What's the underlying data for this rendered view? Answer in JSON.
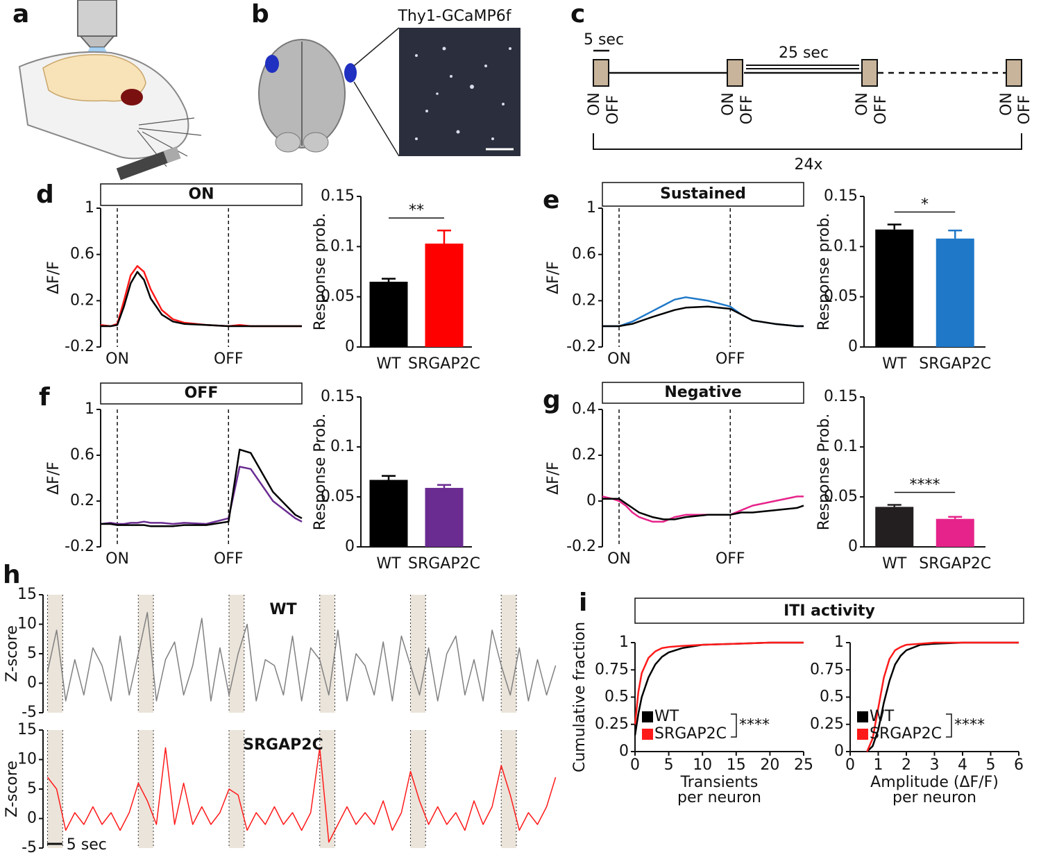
{
  "panel_labels": [
    "a",
    "b",
    "c",
    "d",
    "e",
    "f",
    "g",
    "h",
    "i"
  ],
  "illustration_b": {
    "label": "Thy1-GCaMP6f"
  },
  "protocol": {
    "stim_label": "5 sec",
    "iti_label": "25 sec",
    "on_label": "ON",
    "off_label": "OFF",
    "repeat_label": "24x"
  },
  "chart_data": [
    {
      "type": "line",
      "title": "ON",
      "ylabel": "ΔF/F",
      "frame": "left",
      "xtick_lines": "dashed",
      "x": [
        -0.75,
        -0.3,
        0,
        0.3,
        0.6,
        0.9,
        1.2,
        1.5,
        2,
        2.5,
        3,
        4,
        5,
        5.5,
        6,
        7,
        8,
        8.3
      ],
      "xlim": [
        -0.75,
        8.3
      ],
      "xticks": [
        {
          "value": 0,
          "label": "ON"
        },
        {
          "value": 5,
          "label": "OFF"
        }
      ],
      "ylim": [
        -0.2,
        1
      ],
      "yticks": [
        -0.2,
        0.2,
        0.6,
        1
      ],
      "series": [
        {
          "name": "SRGAP2C",
          "color": "#ff1a1a",
          "values": [
            -0.01,
            -0.02,
            0,
            0.2,
            0.42,
            0.5,
            0.45,
            0.3,
            0.12,
            0.04,
            0.01,
            -0.01,
            -0.02,
            -0.01,
            -0.02,
            -0.02,
            -0.02,
            -0.02
          ]
        },
        {
          "name": "WT",
          "color": "#000000",
          "values": [
            -0.02,
            -0.02,
            -0.01,
            0.15,
            0.35,
            0.45,
            0.38,
            0.22,
            0.08,
            0.02,
            0,
            -0.01,
            -0.02,
            -0.02,
            -0.02,
            -0.02,
            -0.02,
            -0.02
          ]
        }
      ]
    },
    {
      "type": "bar",
      "ylabel": "Response prob.",
      "frame": "left-bottom",
      "categories": [
        "WT",
        "SRGAP2C"
      ],
      "values": [
        0.065,
        0.103
      ],
      "errors": [
        0.003,
        0.013
      ],
      "colors": [
        "#000000",
        "#ff0000"
      ],
      "ylim": [
        0,
        0.15
      ],
      "yticks": [
        0,
        0.05,
        0.1,
        0.15
      ],
      "significance": "**"
    },
    {
      "type": "line",
      "title": "Sustained",
      "ylabel": "ΔF/F",
      "frame": "left",
      "xtick_lines": "dashed",
      "x": [
        -0.75,
        -0.3,
        0,
        0.3,
        0.6,
        0.9,
        1.2,
        1.5,
        2,
        2.5,
        3,
        4,
        5,
        5.5,
        6,
        7,
        8,
        8.3
      ],
      "xlim": [
        -0.75,
        8.3
      ],
      "xticks": [
        {
          "value": 0,
          "label": "ON"
        },
        {
          "value": 5,
          "label": "OFF"
        }
      ],
      "ylim": [
        -0.2,
        1
      ],
      "yticks": [
        -0.2,
        0.2,
        0.6,
        1
      ],
      "series": [
        {
          "name": "SRGAP2C",
          "color": "#1f78c8",
          "values": [
            -0.02,
            -0.02,
            -0.02,
            0,
            0.02,
            0.05,
            0.08,
            0.11,
            0.16,
            0.21,
            0.23,
            0.2,
            0.15,
            0.08,
            0.03,
            0,
            -0.02,
            -0.02
          ]
        },
        {
          "name": "WT",
          "color": "#000000",
          "values": [
            -0.02,
            -0.02,
            -0.02,
            -0.01,
            0,
            0.02,
            0.04,
            0.06,
            0.09,
            0.12,
            0.14,
            0.15,
            0.13,
            0.08,
            0.03,
            0,
            -0.02,
            -0.02
          ]
        }
      ]
    },
    {
      "type": "bar",
      "ylabel": "Response prob.",
      "frame": "left-bottom",
      "categories": [
        "WT",
        "SRGAP2C"
      ],
      "values": [
        0.117,
        0.108
      ],
      "errors": [
        0.005,
        0.008
      ],
      "colors": [
        "#000000",
        "#1f78c8"
      ],
      "ylim": [
        0,
        0.15
      ],
      "yticks": [
        0,
        0.05,
        0.1,
        0.15
      ],
      "significance": "*"
    },
    {
      "type": "line",
      "title": "OFF",
      "ylabel": "ΔF/F",
      "frame": "left",
      "xtick_lines": "dashed",
      "x": [
        -0.75,
        -0.3,
        0,
        0.3,
        0.6,
        0.9,
        1.2,
        1.5,
        2,
        2.5,
        3,
        4,
        5,
        5.5,
        6,
        7,
        8,
        8.3
      ],
      "xlim": [
        -0.75,
        8.3
      ],
      "xticks": [
        {
          "value": 0,
          "label": "ON"
        },
        {
          "value": 5,
          "label": "OFF"
        }
      ],
      "ylim": [
        -0.2,
        1
      ],
      "yticks": [
        -0.2,
        0.2,
        0.6,
        1
      ],
      "series": [
        {
          "name": "SRGAP2C",
          "color": "#6a2c91",
          "values": [
            0,
            0.01,
            0,
            0,
            0.01,
            0.01,
            0.02,
            0.01,
            0.01,
            0,
            0.01,
            0,
            0.05,
            0.5,
            0.48,
            0.2,
            0.05,
            0.02
          ]
        },
        {
          "name": "WT",
          "color": "#000000",
          "values": [
            0,
            0,
            -0.01,
            -0.01,
            -0.01,
            -0.01,
            -0.01,
            -0.02,
            -0.02,
            -0.02,
            -0.01,
            -0.01,
            0.02,
            0.65,
            0.62,
            0.28,
            0.08,
            0.05
          ]
        }
      ]
    },
    {
      "type": "bar",
      "ylabel": "Response Prob.",
      "frame": "left-bottom",
      "categories": [
        "WT",
        "SRGAP2C"
      ],
      "values": [
        0.067,
        0.059
      ],
      "errors": [
        0.004,
        0.003
      ],
      "colors": [
        "#000000",
        "#6a2c91"
      ],
      "ylim": [
        0,
        0.15
      ],
      "yticks": [
        0,
        0.05,
        0.1,
        0.15
      ]
    },
    {
      "type": "line",
      "title": "Negative",
      "ylabel": "ΔF/F",
      "frame": "left",
      "xtick_lines": "dashed",
      "x": [
        -0.75,
        -0.3,
        0,
        0.3,
        0.6,
        0.9,
        1.2,
        1.5,
        2,
        2.5,
        3,
        4,
        5,
        5.5,
        6,
        7,
        8,
        8.3
      ],
      "xlim": [
        -0.75,
        8.3
      ],
      "xticks": [
        {
          "value": 0,
          "label": "ON"
        },
        {
          "value": 5,
          "label": "OFF"
        }
      ],
      "ylim": [
        -0.2,
        0.4
      ],
      "yticks": [
        -0.2,
        0,
        0.2,
        0.4
      ],
      "series": [
        {
          "name": "SRGAP2C",
          "color": "#e6238a",
          "values": [
            0.02,
            0.01,
            0,
            -0.02,
            -0.05,
            -0.07,
            -0.08,
            -0.09,
            -0.09,
            -0.07,
            -0.06,
            -0.06,
            -0.06,
            -0.04,
            -0.02,
            0,
            0.02,
            0.02
          ]
        },
        {
          "name": "WT",
          "color": "#000000",
          "values": [
            0.01,
            0.01,
            0.01,
            -0.01,
            -0.03,
            -0.05,
            -0.06,
            -0.07,
            -0.08,
            -0.08,
            -0.07,
            -0.06,
            -0.06,
            -0.05,
            -0.05,
            -0.04,
            -0.03,
            -0.02
          ]
        }
      ]
    },
    {
      "type": "bar",
      "ylabel": "Response Prob.",
      "frame": "left-bottom",
      "categories": [
        "WT",
        "SRGAP2C"
      ],
      "values": [
        0.04,
        0.028
      ],
      "errors": [
        0.002,
        0.002
      ],
      "colors": [
        "#231f20",
        "#e6238a"
      ],
      "ylim": [
        0,
        0.15
      ],
      "yticks": [
        0,
        0.05,
        0.1,
        0.15
      ],
      "significance": "****"
    },
    {
      "type": "line",
      "annotation": "WT",
      "ylabel": "Z-score",
      "frame": "left",
      "x": [
        0,
        3,
        6,
        9,
        12,
        15,
        18,
        21,
        24,
        27,
        30,
        33,
        36,
        39,
        42,
        45,
        48,
        51,
        54,
        57,
        60,
        63,
        66,
        69,
        72,
        75,
        78,
        81,
        84,
        87,
        90,
        93,
        96,
        99,
        102,
        105,
        108,
        111,
        114,
        117,
        120,
        123,
        126,
        129,
        132,
        135,
        138,
        141,
        144,
        147,
        150,
        153,
        156,
        159,
        162,
        165,
        168
      ],
      "xlim": [
        -1.5,
        169
      ],
      "ylim": [
        -5,
        15
      ],
      "yticks": [
        -5,
        0,
        5,
        10,
        15
      ],
      "stimulus_starts": [
        0,
        30,
        60,
        90,
        120,
        150
      ],
      "stimulus_duration": 5,
      "series": [
        {
          "name": "WT",
          "color": "#808080",
          "values": [
            2,
            9,
            -3,
            4,
            -2,
            6,
            3,
            -3,
            8,
            -2,
            5,
            12,
            -3,
            4,
            7,
            -2,
            3,
            11,
            -3,
            6,
            -2,
            5,
            10,
            -3,
            4,
            3,
            -2,
            8,
            -3,
            6,
            4,
            -2,
            9,
            -3,
            5,
            3,
            -2,
            7,
            -3,
            8,
            3,
            -2,
            6,
            -3,
            5,
            8,
            -2,
            4,
            -3,
            9,
            3,
            -2,
            6,
            -3,
            4,
            -2,
            3
          ]
        }
      ]
    },
    {
      "type": "line",
      "annotation": "SRGAP2C",
      "ylabel": "Z-score",
      "frame": "left",
      "scale_bar": "5 sec",
      "x": [
        0,
        3,
        6,
        9,
        12,
        15,
        18,
        21,
        24,
        27,
        30,
        33,
        36,
        39,
        42,
        45,
        48,
        51,
        54,
        57,
        60,
        63,
        66,
        69,
        72,
        75,
        78,
        81,
        84,
        87,
        90,
        93,
        96,
        99,
        102,
        105,
        108,
        111,
        114,
        117,
        120,
        123,
        126,
        129,
        132,
        135,
        138,
        141,
        144,
        147,
        150,
        153,
        156,
        159,
        162,
        165,
        168
      ],
      "xlim": [
        -1.5,
        169
      ],
      "ylim": [
        -5,
        15
      ],
      "yticks": [
        -5,
        0,
        5,
        10,
        15
      ],
      "stimulus_starts": [
        0,
        30,
        60,
        90,
        120,
        150
      ],
      "stimulus_duration": 5,
      "series": [
        {
          "name": "SRGAP2C",
          "color": "#ff1a1a",
          "values": [
            7,
            5,
            -2,
            1,
            -1,
            2,
            -1,
            1,
            -2,
            1,
            6,
            3,
            -1,
            12,
            -1,
            6,
            -1,
            2,
            -1,
            1,
            5,
            4,
            -2,
            1,
            -1,
            2,
            -1,
            1,
            -2,
            1,
            12,
            -4,
            -1,
            2,
            -1,
            1,
            -1,
            3,
            -2,
            1,
            8,
            3,
            -1,
            2,
            -1,
            1,
            -2,
            3,
            -1,
            2,
            9,
            4,
            -2,
            1,
            -1,
            2,
            7
          ]
        }
      ]
    },
    {
      "type": "line",
      "group_title": "ITI activity",
      "ylabel": "Cumulative fraction",
      "xlabel": [
        "Transients",
        "per neuron"
      ],
      "frame": "left-bottom",
      "legend": "lower left",
      "annotation_legend": "****",
      "x": [
        0,
        0.5,
        1,
        2,
        3,
        4,
        5,
        7,
        10,
        15,
        20,
        25
      ],
      "xlim": [
        0,
        25
      ],
      "xticks": [
        0,
        5,
        10,
        15,
        20,
        25
      ],
      "ylim": [
        0,
        1
      ],
      "yticks": [
        0,
        0.25,
        0.5,
        0.75,
        1
      ],
      "series": [
        {
          "name": "WT",
          "color": "#000000",
          "values": [
            0.15,
            0.35,
            0.5,
            0.68,
            0.8,
            0.87,
            0.91,
            0.95,
            0.98,
            0.99,
            1,
            1
          ]
        },
        {
          "name": "SRGAP2C",
          "color": "#ff1a1a",
          "values": [
            0.25,
            0.55,
            0.72,
            0.86,
            0.92,
            0.95,
            0.96,
            0.97,
            0.98,
            0.99,
            1,
            1
          ]
        }
      ]
    },
    {
      "type": "line",
      "xlabel": [
        "Amplitude (ΔF/F)",
        "per neuron"
      ],
      "frame": "left-bottom",
      "legend": "lower left",
      "annotation_legend": "****",
      "x": [
        0.6,
        0.8,
        1,
        1.2,
        1.4,
        1.6,
        1.8,
        2,
        2.5,
        3,
        4,
        6
      ],
      "xlim": [
        0,
        6
      ],
      "xticks": [
        0,
        1,
        2,
        3,
        4,
        5,
        6
      ],
      "ylim": [
        0,
        1
      ],
      "yticks": [
        0,
        0.25,
        0.5,
        0.75,
        1
      ],
      "series": [
        {
          "name": "WT",
          "color": "#000000",
          "values": [
            0,
            0.05,
            0.2,
            0.45,
            0.65,
            0.8,
            0.88,
            0.93,
            0.98,
            0.99,
            1,
            1
          ]
        },
        {
          "name": "SRGAP2C",
          "color": "#ff1a1a",
          "values": [
            0,
            0.12,
            0.4,
            0.68,
            0.85,
            0.93,
            0.96,
            0.98,
            0.99,
            1,
            1,
            1
          ]
        }
      ]
    }
  ]
}
